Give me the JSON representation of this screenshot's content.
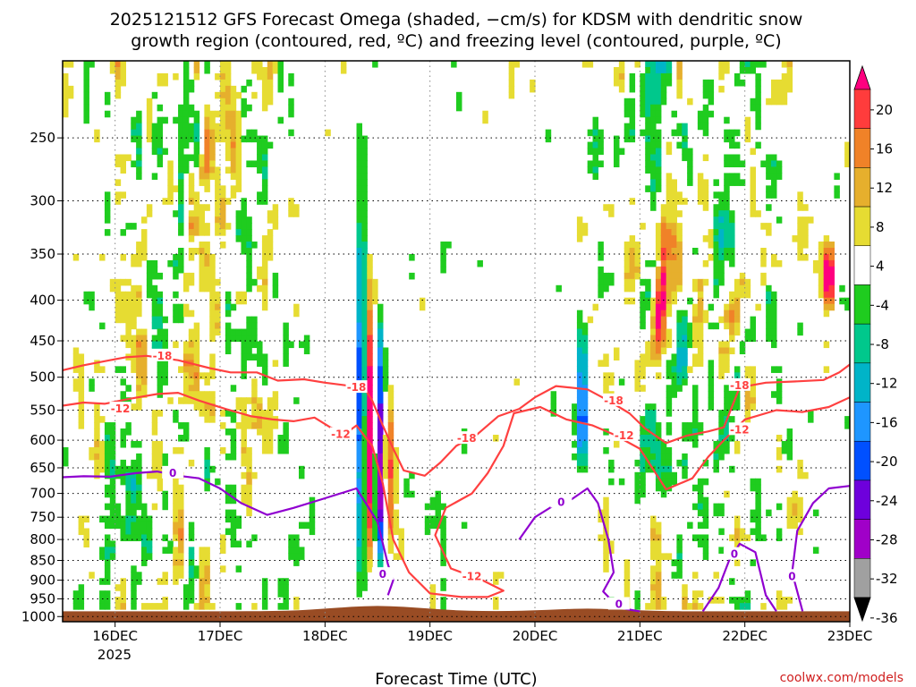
{
  "title_line1": "2025121512 GFS Forecast Omega (shaded, −cm/s) for KDSM with dendritic snow",
  "title_line2": "growth region (contoured, red, ºC) and freezing level (contoured, purple, ºC)",
  "xlabel": "Forecast Time (UTC)",
  "credit": "coolwx.com/models",
  "year_label": "2025",
  "chart_data": {
    "type": "heatmap",
    "title": "2025121512 GFS Forecast Omega (shaded, −cm/s) for KDSM with dendritic snow growth region (contoured, red, ºC) and freezing level (contoured, purple, ºC)",
    "xlabel": "Forecast Time (UTC)",
    "ylabel": "",
    "y_axis_log_pressure": true,
    "x_ticks": [
      "16DEC",
      "17DEC",
      "18DEC",
      "19DEC",
      "20DEC",
      "21DEC",
      "22DEC",
      "23DEC"
    ],
    "x_tick_days": [
      16,
      17,
      18,
      19,
      20,
      21,
      22,
      23
    ],
    "x_range_days": [
      15.5,
      23.0
    ],
    "y_ticks": [
      250,
      300,
      350,
      400,
      450,
      500,
      550,
      600,
      650,
      700,
      750,
      800,
      850,
      900,
      950,
      1000
    ],
    "y_range_hpa": [
      200,
      1015
    ],
    "grid": true,
    "colorbar": {
      "tick_labels": [
        "20",
        "16",
        "12",
        "8",
        "4",
        "-4",
        "-8",
        "-12",
        "-16",
        "-20",
        "-24",
        "-28",
        "-32",
        "-36"
      ],
      "bins": [
        {
          "range": [
            20,
            24
          ],
          "color": "#ff007f"
        },
        {
          "range": [
            16,
            20
          ],
          "color": "#ff3c3c"
        },
        {
          "range": [
            12,
            16
          ],
          "color": "#f08228"
        },
        {
          "range": [
            8,
            12
          ],
          "color": "#e6af2d"
        },
        {
          "range": [
            4,
            8
          ],
          "color": "#e6dc32"
        },
        {
          "range": [
            -4,
            4
          ],
          "color": "#ffffff"
        },
        {
          "range": [
            -8,
            -4
          ],
          "color": "#1fcc1f"
        },
        {
          "range": [
            -12,
            -8
          ],
          "color": "#00c88c"
        },
        {
          "range": [
            -16,
            -12
          ],
          "color": "#00b4c8"
        },
        {
          "range": [
            -20,
            -16
          ],
          "color": "#1e96ff"
        },
        {
          "range": [
            -24,
            -20
          ],
          "color": "#0050ff"
        },
        {
          "range": [
            -28,
            -24
          ],
          "color": "#6e00dc"
        },
        {
          "range": [
            -32,
            -28
          ],
          "color": "#a000c8"
        },
        {
          "range": [
            -36,
            -32
          ],
          "color": "#a0a0a0"
        },
        {
          "range": [
            -40,
            -36
          ],
          "color": "#000000"
        }
      ]
    },
    "features": [
      {
        "day": 18.35,
        "p_top": 220,
        "p_bot": 960,
        "omega": -20
      },
      {
        "day": 18.42,
        "p_top": 330,
        "p_bot": 930,
        "omega": 22
      },
      {
        "day": 18.52,
        "p_top": 380,
        "p_bot": 900,
        "omega": -24
      },
      {
        "day": 18.6,
        "p_top": 480,
        "p_bot": 860,
        "omega": 16
      },
      {
        "day": 20.45,
        "p_top": 400,
        "p_bot": 700,
        "omega": -16
      },
      {
        "day": 21.2,
        "p_top": 300,
        "p_bot": 480,
        "omega": 16
      },
      {
        "day": 22.8,
        "p_top": 330,
        "p_bot": 420,
        "omega": 22
      }
    ],
    "contours": [
      {
        "name": "-18",
        "type": "dendritic",
        "color": "#ff4040",
        "labels": [
          {
            "text": "-18",
            "day": 16.45,
            "p": 470
          },
          {
            "text": "-18",
            "day": 18.3,
            "p": 515
          },
          {
            "text": "-18",
            "day": 19.35,
            "p": 597
          },
          {
            "text": "-18",
            "day": 20.75,
            "p": 535
          },
          {
            "text": "-18",
            "day": 21.95,
            "p": 512
          }
        ],
        "points": [
          [
            15.5,
            490
          ],
          [
            15.7,
            483
          ],
          [
            15.95,
            476
          ],
          [
            16.1,
            472
          ],
          [
            16.3,
            470
          ],
          [
            16.6,
            476
          ],
          [
            16.9,
            487
          ],
          [
            17.1,
            493
          ],
          [
            17.35,
            493
          ],
          [
            17.55,
            505
          ],
          [
            17.8,
            503
          ],
          [
            18.0,
            508
          ],
          [
            18.2,
            512
          ],
          [
            18.35,
            510
          ],
          [
            18.45,
            535
          ],
          [
            18.55,
            575
          ],
          [
            18.65,
            615
          ],
          [
            18.75,
            655
          ],
          [
            18.95,
            665
          ],
          [
            19.1,
            640
          ],
          [
            19.25,
            610
          ],
          [
            19.45,
            590
          ],
          [
            19.65,
            560
          ],
          [
            19.85,
            548
          ],
          [
            20.0,
            530
          ],
          [
            20.2,
            513
          ],
          [
            20.5,
            518
          ],
          [
            20.7,
            535
          ],
          [
            20.9,
            555
          ],
          [
            21.05,
            580
          ],
          [
            21.25,
            605
          ],
          [
            21.45,
            592
          ],
          [
            21.65,
            585
          ],
          [
            21.8,
            578
          ],
          [
            21.95,
            515
          ],
          [
            22.2,
            508
          ],
          [
            22.5,
            506
          ],
          [
            22.75,
            504
          ],
          [
            22.9,
            493
          ],
          [
            23.0,
            482
          ]
        ]
      },
      {
        "name": "-12",
        "type": "dendritic",
        "color": "#ff4040",
        "labels": [
          {
            "text": "-12",
            "day": 16.05,
            "p": 548
          },
          {
            "text": "-12",
            "day": 18.15,
            "p": 590
          },
          {
            "text": "-12",
            "day": 19.4,
            "p": 890
          },
          {
            "text": "-12",
            "day": 20.85,
            "p": 592
          },
          {
            "text": "-12",
            "day": 21.95,
            "p": 582
          }
        ],
        "points": [
          [
            15.5,
            543
          ],
          [
            15.7,
            538
          ],
          [
            15.9,
            540
          ],
          [
            16.15,
            532
          ],
          [
            16.4,
            525
          ],
          [
            16.6,
            523
          ],
          [
            16.8,
            535
          ],
          [
            17.05,
            548
          ],
          [
            17.3,
            560
          ],
          [
            17.5,
            565
          ],
          [
            17.7,
            568
          ],
          [
            17.9,
            562
          ],
          [
            18.05,
            578
          ],
          [
            18.2,
            588
          ],
          [
            18.3,
            575
          ],
          [
            18.45,
            610
          ],
          [
            18.55,
            680
          ],
          [
            18.65,
            800
          ],
          [
            18.8,
            880
          ],
          [
            19.0,
            935
          ],
          [
            19.3,
            945
          ],
          [
            19.55,
            945
          ],
          [
            19.7,
            928
          ],
          [
            19.5,
            900
          ],
          [
            19.2,
            870
          ],
          [
            19.05,
            790
          ],
          [
            19.15,
            730
          ],
          [
            19.4,
            700
          ],
          [
            19.55,
            660
          ],
          [
            19.7,
            610
          ],
          [
            19.8,
            555
          ],
          [
            20.05,
            545
          ],
          [
            20.3,
            565
          ],
          [
            20.55,
            575
          ],
          [
            20.75,
            590
          ],
          [
            21.0,
            615
          ],
          [
            21.25,
            692
          ],
          [
            21.5,
            670
          ],
          [
            21.65,
            630
          ],
          [
            21.8,
            600
          ],
          [
            22.0,
            565
          ],
          [
            22.3,
            550
          ],
          [
            22.55,
            553
          ],
          [
            22.8,
            545
          ],
          [
            23.0,
            530
          ]
        ]
      },
      {
        "name": "0",
        "type": "freezing",
        "color": "#9000d0",
        "labels": [
          {
            "text": "0",
            "day": 16.55,
            "p": 660
          },
          {
            "text": "0",
            "day": 18.55,
            "p": 885
          },
          {
            "text": "0",
            "day": 20.25,
            "p": 718
          },
          {
            "text": "0",
            "day": 20.8,
            "p": 965
          },
          {
            "text": "0",
            "day": 21.9,
            "p": 835
          },
          {
            "text": "0",
            "day": 22.45,
            "p": 890
          }
        ],
        "points": [
          [
            15.5,
            668
          ],
          [
            15.7,
            666
          ],
          [
            15.95,
            667
          ],
          [
            16.2,
            660
          ],
          [
            16.4,
            657
          ],
          [
            16.6,
            665
          ],
          [
            16.8,
            670
          ],
          [
            17.0,
            690
          ],
          [
            17.2,
            720
          ],
          [
            17.45,
            745
          ],
          [
            17.7,
            730
          ],
          [
            18.0,
            710
          ],
          [
            18.3,
            690
          ],
          [
            18.5,
            760
          ],
          [
            18.6,
            860
          ],
          [
            18.65,
            900
          ],
          [
            18.6,
            940
          ]
        ]
      },
      {
        "name": "0-b",
        "type": "freezing",
        "color": "#9000d0",
        "points": [
          [
            19.85,
            800
          ],
          [
            20.0,
            750
          ],
          [
            20.2,
            722
          ],
          [
            20.35,
            712
          ],
          [
            20.5,
            690
          ],
          [
            20.6,
            720
          ],
          [
            20.7,
            800
          ],
          [
            20.75,
            880
          ],
          [
            20.65,
            930
          ],
          [
            20.8,
            975
          ],
          [
            21.0,
            985
          ]
        ]
      },
      {
        "name": "0-c",
        "type": "freezing",
        "color": "#9000d0",
        "points": [
          [
            21.6,
            985
          ],
          [
            21.75,
            920
          ],
          [
            21.85,
            850
          ],
          [
            21.95,
            810
          ],
          [
            22.1,
            830
          ],
          [
            22.2,
            940
          ],
          [
            22.3,
            985
          ]
        ]
      },
      {
        "name": "0-d",
        "type": "freezing",
        "color": "#9000d0",
        "points": [
          [
            22.55,
            985
          ],
          [
            22.45,
            880
          ],
          [
            22.5,
            780
          ],
          [
            22.65,
            720
          ],
          [
            22.8,
            690
          ],
          [
            23.0,
            685
          ]
        ]
      }
    ]
  }
}
